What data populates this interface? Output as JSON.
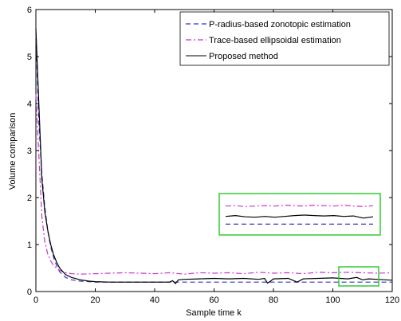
{
  "chart_data": {
    "type": "line",
    "xlabel": "Sample time k",
    "ylabel": "Volume comparison",
    "xlim": [
      0,
      120
    ],
    "ylim": [
      0,
      6
    ],
    "xticks": [
      "0",
      "20",
      "40",
      "60",
      "80",
      "100",
      "120"
    ],
    "yticks": [
      "0",
      "1",
      "2",
      "3",
      "4",
      "5",
      "6"
    ],
    "legend_position": "top-right",
    "grid": false,
    "series": [
      {
        "name": "P-radius-based zonotopic estimation",
        "color": "#3333cc",
        "style": "dashed",
        "x": [
          0,
          1,
          2,
          3,
          4,
          5,
          6,
          7,
          8,
          10,
          12,
          15,
          18,
          20,
          25,
          30,
          40,
          50,
          60,
          70,
          80,
          90,
          100,
          110,
          120
        ],
        "y": [
          5.5,
          3.6,
          2.5,
          1.8,
          1.3,
          0.95,
          0.72,
          0.55,
          0.42,
          0.3,
          0.25,
          0.22,
          0.21,
          0.2,
          0.2,
          0.2,
          0.2,
          0.2,
          0.2,
          0.2,
          0.2,
          0.2,
          0.2,
          0.2,
          0.2
        ]
      },
      {
        "name": "Trace-based ellipsoidal estimation",
        "color": "#cc33cc",
        "style": "dashdot",
        "x": [
          0,
          1,
          2,
          3,
          4,
          5,
          6,
          8,
          10,
          12,
          15,
          20,
          25,
          30,
          35,
          40,
          45,
          50,
          55,
          60,
          65,
          70,
          75,
          80,
          85,
          90,
          95,
          100,
          105,
          110,
          115,
          120
        ],
        "y": [
          4.2,
          2.9,
          1.6,
          1.05,
          0.8,
          0.65,
          0.55,
          0.45,
          0.4,
          0.38,
          0.37,
          0.38,
          0.39,
          0.4,
          0.39,
          0.38,
          0.4,
          0.37,
          0.4,
          0.39,
          0.4,
          0.38,
          0.41,
          0.39,
          0.4,
          0.38,
          0.41,
          0.4,
          0.41,
          0.4,
          0.39,
          0.4
        ]
      },
      {
        "name": "Proposed method",
        "color": "#000000",
        "style": "solid",
        "x": [
          0,
          1,
          2,
          3,
          4,
          5,
          6,
          7,
          8,
          10,
          12,
          15,
          18,
          20,
          25,
          30,
          35,
          40,
          45,
          46,
          47,
          48,
          50,
          55,
          60,
          65,
          70,
          75,
          77,
          78,
          79,
          80,
          85,
          88,
          90,
          95,
          100,
          105,
          108,
          110,
          112,
          115,
          120
        ],
        "y": [
          5.6,
          4.0,
          2.4,
          1.7,
          1.3,
          1.0,
          0.78,
          0.62,
          0.5,
          0.36,
          0.3,
          0.25,
          0.22,
          0.21,
          0.2,
          0.2,
          0.2,
          0.2,
          0.2,
          0.23,
          0.17,
          0.25,
          0.26,
          0.27,
          0.28,
          0.27,
          0.28,
          0.26,
          0.28,
          0.18,
          0.22,
          0.27,
          0.28,
          0.2,
          0.27,
          0.28,
          0.29,
          0.27,
          0.3,
          0.25,
          0.27,
          0.26,
          0.24
        ]
      }
    ],
    "inset": {
      "source_xlim": [
        102,
        117
      ],
      "source_ylim": [
        0.12,
        0.5
      ],
      "series_y": {
        "P-radius-based zonotopic estimation": [
          0.2,
          0.2,
          0.2,
          0.2,
          0.2,
          0.2,
          0.2,
          0.2,
          0.2,
          0.2,
          0.2,
          0.2,
          0.2,
          0.2,
          0.2,
          0.2
        ],
        "Trace-based ellipsoidal estimation": [
          0.41,
          0.415,
          0.405,
          0.41,
          0.415,
          0.41,
          0.42,
          0.415,
          0.41,
          0.42,
          0.415,
          0.41,
          0.42,
          0.41,
          0.405,
          0.415
        ],
        "Proposed method": [
          0.29,
          0.3,
          0.285,
          0.28,
          0.29,
          0.28,
          0.29,
          0.3,
          0.305,
          0.3,
          0.295,
          0.3,
          0.29,
          0.295,
          0.27,
          0.285
        ]
      }
    }
  }
}
